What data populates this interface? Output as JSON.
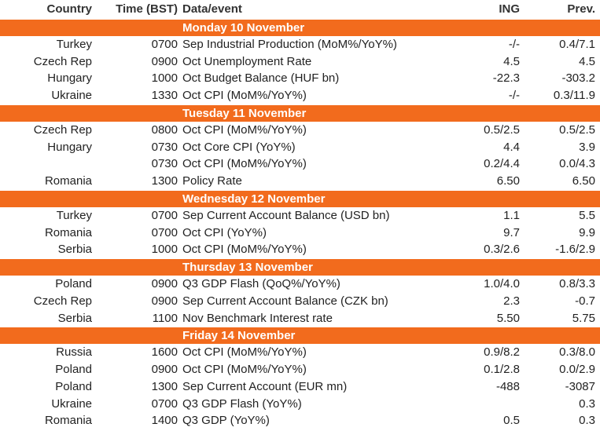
{
  "header": {
    "columns": [
      "Country",
      "Time (BST)",
      "Data/event",
      "ING",
      "Prev."
    ]
  },
  "sections": [
    {
      "title": "Monday 10 November",
      "rows": [
        [
          "Turkey",
          "0700",
          "Sep Industrial Production (MoM%/YoY%)",
          "-/-",
          "0.4/7.1"
        ],
        [
          "Czech Rep",
          "0900",
          "Oct Unemployment Rate",
          "4.5",
          "4.5"
        ],
        [
          "Hungary",
          "1000",
          "Oct Budget Balance (HUF bn)",
          "-22.3",
          "-303.2"
        ],
        [
          "Ukraine",
          "1330",
          "Oct CPI (MoM%/YoY%)",
          "-/-",
          "0.3/11.9"
        ]
      ]
    },
    {
      "title": "Tuesday 11 November",
      "rows": [
        [
          "Czech Rep",
          "0800",
          "Oct CPI (MoM%/YoY%)",
          "0.5/2.5",
          "0.5/2.5"
        ],
        [
          "Hungary",
          "0730",
          "Oct Core CPI (YoY%)",
          "4.4",
          "3.9"
        ],
        [
          null,
          "0730",
          "Oct CPI (MoM%/YoY%)",
          "0.2/4.4",
          "0.0/4.3"
        ],
        [
          "Romania",
          "1300",
          "Policy Rate",
          "6.50",
          "6.50"
        ]
      ]
    },
    {
      "title": "Wednesday 12 November",
      "rows": [
        [
          "Turkey",
          "0700",
          "Sep Current Account Balance (USD bn)",
          "1.1",
          "5.5"
        ],
        [
          "Romania",
          "0700",
          "Oct CPI (YoY%)",
          "9.7",
          "9.9"
        ],
        [
          "Serbia",
          "1000",
          "Oct CPI (MoM%/YoY%)",
          "0.3/2.6",
          "-1.6/2.9"
        ]
      ]
    },
    {
      "title": "Thursday 13 November",
      "rows": [
        [
          "Poland",
          "0900",
          "Q3 GDP Flash (QoQ%/YoY%)",
          "1.0/4.0",
          "0.8/3.3"
        ],
        [
          "Czech Rep",
          "0900",
          "Sep Current Account Balance (CZK bn)",
          "2.3",
          "-0.7"
        ],
        [
          "Serbia",
          "1100",
          "Nov Benchmark Interest rate",
          "5.50",
          "5.75"
        ]
      ]
    },
    {
      "title": "Friday 14 November",
      "rows": [
        [
          "Russia",
          "1600",
          "Oct CPI (MoM%/YoY%)",
          "0.9/8.2",
          "0.3/8.0"
        ],
        [
          "Poland",
          "0900",
          "Oct CPI (MoM%/YoY%)",
          "0.1/2.8",
          "0.0/2.9"
        ],
        [
          "Poland",
          "1300",
          "Sep Current Account (EUR mn)",
          "-488",
          "-3087"
        ],
        [
          "Ukraine",
          "0700",
          "Q3 GDP Flash (YoY%)",
          null,
          "0.3"
        ],
        [
          "Romania",
          "1400",
          "Q3 GDP (YoY%)",
          "0.5",
          "0.3"
        ]
      ]
    }
  ]
}
